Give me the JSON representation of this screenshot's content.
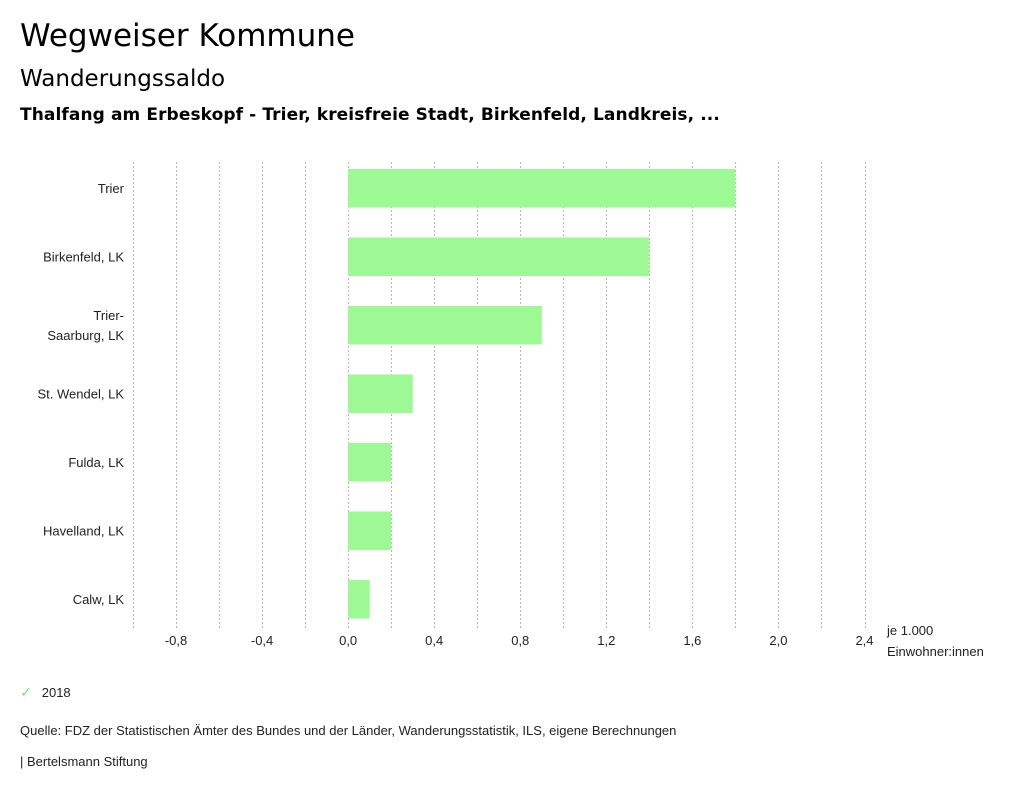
{
  "header": {
    "title": "Wegweiser Kommune",
    "subtitle": "Wanderungssaldo",
    "region": "Thalfang am Erbeskopf - Trier, kreisfreie Stadt, Birkenfeld, Landkreis, ..."
  },
  "chart_data": {
    "type": "bar",
    "orientation": "horizontal",
    "categories": [
      [
        "Trier"
      ],
      [
        "Birkenfeld, LK"
      ],
      [
        "Trier-",
        "Saarburg, LK"
      ],
      [
        "St. Wendel, LK"
      ],
      [
        "Fulda, LK"
      ],
      [
        "Havelland, LK"
      ],
      [
        "Calw, LK"
      ]
    ],
    "series": [
      {
        "name": "2018",
        "color": "#9cf993",
        "values": [
          1.8,
          1.4,
          0.9,
          0.3,
          0.2,
          0.2,
          0.1
        ]
      }
    ],
    "xlim": [
      -1.0,
      2.4
    ],
    "grid_step": 0.2,
    "ticks": [
      -0.8,
      -0.4,
      0.0,
      0.4,
      0.8,
      1.2,
      1.6,
      2.0,
      2.4
    ],
    "tick_labels": [
      "-0,8",
      "-0,4",
      "0,0",
      "0,4",
      "0,8",
      "1,2",
      "1,6",
      "2,0",
      "2,4"
    ],
    "unit_label": [
      "je 1.000",
      "Einwohner:innen"
    ],
    "grid": true,
    "legend_position": "bottom-left"
  },
  "legend": {
    "icon": "check-icon",
    "label": "2018",
    "color": "#7ee87e"
  },
  "footer": {
    "source": "Quelle: FDZ der Statistischen Ämter des Bundes und der Länder, Wanderungsstatistik, ILS, eigene Berechnungen",
    "brand": "| Bertelsmann Stiftung"
  }
}
